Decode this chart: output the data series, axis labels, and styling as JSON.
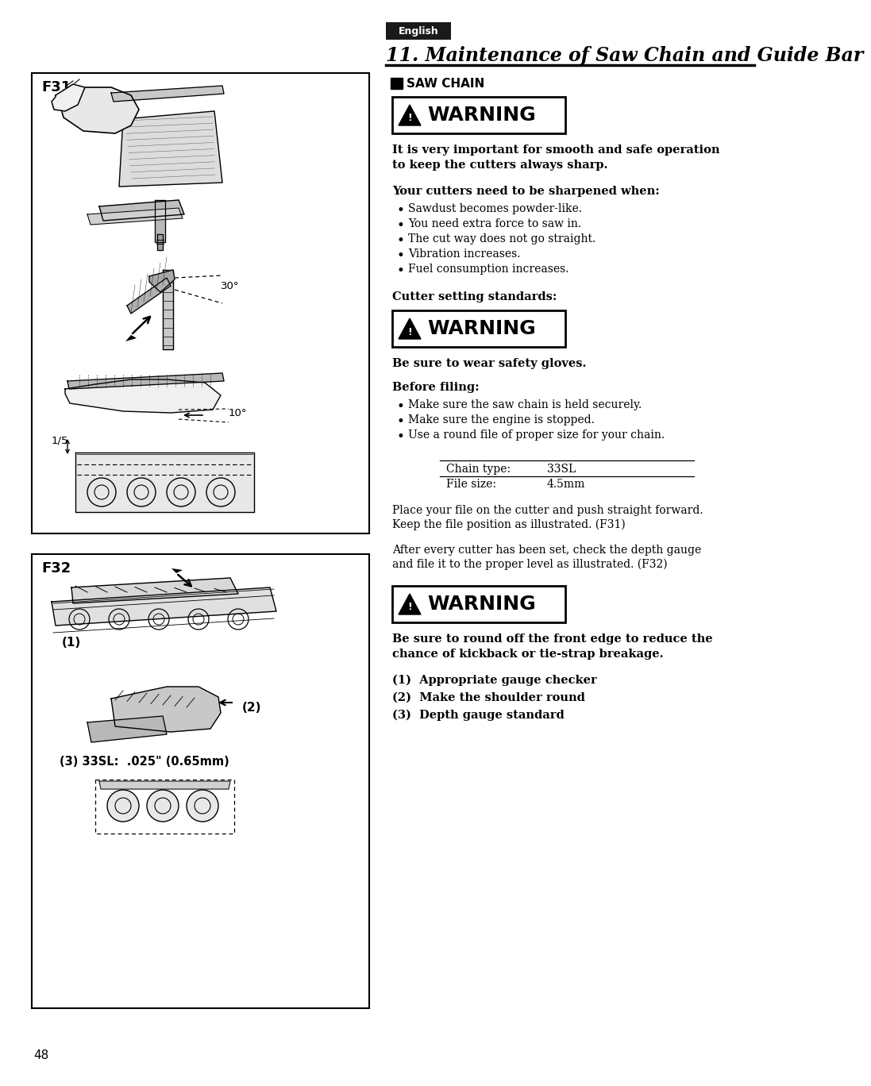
{
  "page_bg": "#ffffff",
  "page_number": "48",
  "english_label": "English",
  "english_bg": "#1a1a1a",
  "english_text_color": "#ffffff",
  "title": "11. Maintenance of Saw Chain and Guide Bar",
  "section_label": "SAW CHAIN",
  "warning_text": "WARNING",
  "bold_intro_line1": "It is very important for smooth and safe operation",
  "bold_intro_line2": "to keep the cutters always sharp.",
  "cutters_header": "Your cutters need to be sharpened when:",
  "cutters_bullets": [
    "Sawdust becomes powder-like.",
    "You need extra force to saw in.",
    "The cut way does not go straight.",
    "Vibration increases.",
    "Fuel consumption increases."
  ],
  "cutter_setting_header": "Cutter setting standards:",
  "gloves_text": "Be sure to wear safety gloves.",
  "before_filing_header": "Before filing:",
  "before_filing_bullets": [
    "Make sure the saw chain is held securely.",
    "Make sure the engine is stopped.",
    "Use a round file of proper size for your chain."
  ],
  "chain_type_label": "Chain type:",
  "chain_type_value": "33SL",
  "file_size_label": "File size:",
  "file_size_value": "4.5mm",
  "place_file_line1": "Place your file on the cutter and push straight forward.",
  "place_file_line2": "Keep the file position as illustrated. (F31)",
  "after_cutter_line1": "After every cutter has been set, check the depth gauge",
  "after_cutter_line2": "and file it to the proper level as illustrated. (F32)",
  "round_off_line1": "Be sure to round off the front edge to reduce the",
  "round_off_line2": "chance of kickback or tie-strap breakage.",
  "num_item1": "(1)  Appropriate gauge checker",
  "num_item2": "(2)  Make the shoulder round",
  "num_item3": "(3)  Depth gauge standard",
  "f31_label": "F31",
  "f32_label": "F32",
  "f32_item1": "(1)",
  "f32_item2": "(2)",
  "f32_item3_label": "(3) 33SL:  .025\" (0.65mm)"
}
